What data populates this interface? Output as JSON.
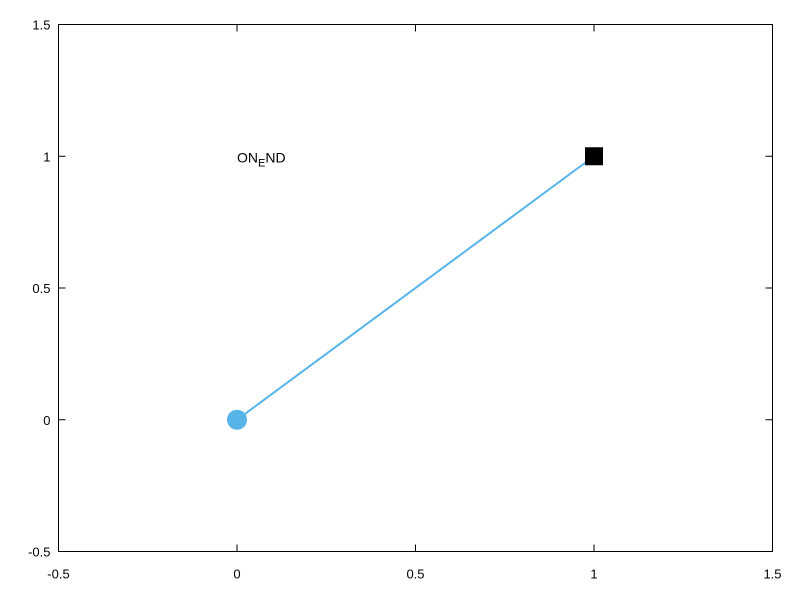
{
  "chart_data": {
    "type": "line",
    "title": "",
    "xlabel": "",
    "ylabel": "",
    "xlim": [
      -0.5,
      1.5
    ],
    "ylim": [
      -0.5,
      1.5
    ],
    "xticks": [
      -0.5,
      0,
      0.5,
      1,
      1.5
    ],
    "yticks": [
      -0.5,
      0,
      0.5,
      1,
      1.5
    ],
    "xtick_labels": [
      "-0.5",
      "0",
      "0.5",
      "1",
      "1.5"
    ],
    "ytick_labels": [
      "-0.5",
      "0",
      "0.5",
      "1",
      "1.5"
    ],
    "grid": false,
    "series": [
      {
        "x": [
          0,
          1
        ],
        "y": [
          0,
          1
        ],
        "color": "#56b4e9",
        "start_marker": "circle",
        "end_marker": "square",
        "start_marker_color": "#56b4e9",
        "end_marker_color": "#000000"
      }
    ],
    "annotations": [
      {
        "x": 0,
        "y": 1,
        "text_main": "ON",
        "text_sub": "E",
        "text_tail": "ND"
      }
    ]
  }
}
